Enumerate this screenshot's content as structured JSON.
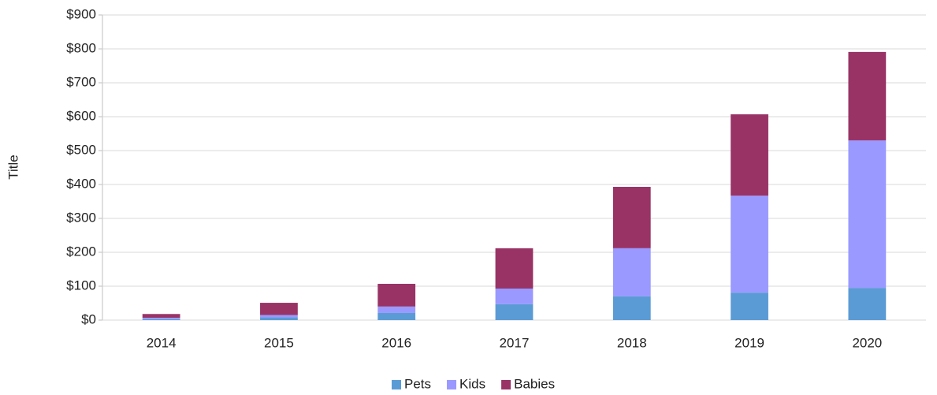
{
  "chart_data": {
    "type": "stacked_bar",
    "y_axis_label": "Title",
    "categories": [
      "2014",
      "2015",
      "2016",
      "2017",
      "2018",
      "2019",
      "2020"
    ],
    "series": [
      {
        "name": "Pets",
        "color": "#5b9bd5",
        "values": [
          3,
          8,
          21,
          47,
          70,
          81,
          95
        ]
      },
      {
        "name": "Kids",
        "color": "#9999ff",
        "values": [
          4,
          7,
          19,
          46,
          142,
          286,
          435
        ]
      },
      {
        "name": "Babies",
        "color": "#993366",
        "values": [
          11,
          36,
          67,
          119,
          181,
          240,
          261
        ]
      }
    ],
    "ylim": [
      0,
      900
    ],
    "yticks": [
      {
        "value": 0,
        "label": "$0"
      },
      {
        "value": 100,
        "label": "$100"
      },
      {
        "value": 200,
        "label": "$200"
      },
      {
        "value": 300,
        "label": "$300"
      },
      {
        "value": 400,
        "label": "$400"
      },
      {
        "value": 500,
        "label": "$500"
      },
      {
        "value": 600,
        "label": "$600"
      },
      {
        "value": 700,
        "label": "$700"
      },
      {
        "value": 800,
        "label": "$800"
      },
      {
        "value": 900,
        "label": "$900"
      }
    ],
    "grid": true,
    "legend": "bottom"
  }
}
